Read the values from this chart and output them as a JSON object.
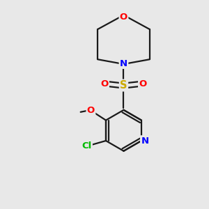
{
  "background_color": "#e8e8e8",
  "bond_color": "#1a1a1a",
  "colors": {
    "O": "#ff0000",
    "N": "#0000ff",
    "S": "#ccaa00",
    "Cl": "#00bb00",
    "C": "#1a1a1a"
  },
  "figsize": [
    3.0,
    3.0
  ],
  "dpi": 100,
  "lw": 1.6,
  "fs": 9.5
}
